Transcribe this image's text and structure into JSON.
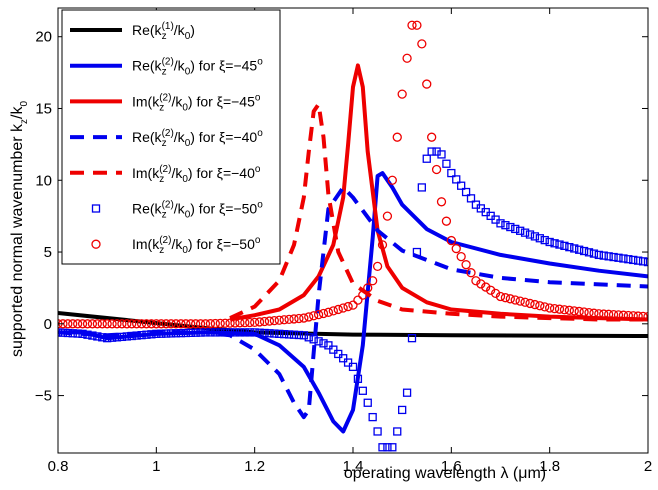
{
  "chart_data": {
    "type": "line",
    "xlabel": "operating wavelength λ (μm)",
    "ylabel": "supported normal wavenumber k_z/k_0",
    "xlim": [
      0.8,
      2.0
    ],
    "ylim": [
      -9,
      22
    ],
    "grid": false,
    "legend_position": "top-left",
    "x_ticks": [
      "0.8",
      "1",
      "1.2",
      "1.4",
      "1.6",
      "1.8",
      "2"
    ],
    "y_ticks": [
      "-5",
      "0",
      "5",
      "10",
      "15",
      "20"
    ],
    "series": [
      {
        "name": "Re(kz(1)/k0)",
        "color": "#000000",
        "style": "solid",
        "legend": {
          "pre": "Re(k",
          "sub": "z",
          "sup": "(1)",
          "post": "/k",
          "sub2": "0",
          "end": ")"
        },
        "x": [
          0.8,
          1.0,
          1.1,
          1.2,
          1.4,
          1.6,
          2.0
        ],
        "y": [
          0.75,
          0.05,
          -0.3,
          -0.6,
          -0.75,
          -0.8,
          -0.85
        ]
      },
      {
        "name": "Re(kz(2)/k0) for ξ=−45°",
        "color": "#0000ee",
        "style": "solid",
        "legend": {
          "pre": "Re(k",
          "sub": "z",
          "sup": "(2)",
          "post": "/k",
          "sub2": "0",
          "end": ") for ξ=−45",
          "deg": "o"
        },
        "x": [
          0.8,
          0.85,
          0.9,
          1.0,
          1.1,
          1.2,
          1.25,
          1.3,
          1.33,
          1.36,
          1.38,
          1.4,
          1.42,
          1.44,
          1.45,
          1.46,
          1.48,
          1.5,
          1.55,
          1.6,
          1.7,
          1.8,
          1.9,
          2.0
        ],
        "y": [
          -0.6,
          -0.6,
          -1.0,
          -0.7,
          -0.6,
          -0.7,
          -1.5,
          -3.0,
          -4.8,
          -6.8,
          -7.5,
          -6.0,
          -1.5,
          6.0,
          10.3,
          10.5,
          9.5,
          8.3,
          6.6,
          5.7,
          4.8,
          4.2,
          3.7,
          3.3
        ]
      },
      {
        "name": "Im(kz(2)/k0) for ξ=−45°",
        "color": "#ee0000",
        "style": "solid",
        "legend": {
          "pre": "Im(k",
          "sub": "z",
          "sup": "(2)",
          "post": "/k",
          "sub2": "0",
          "end": ") for ξ=−45",
          "deg": "o"
        },
        "x": [
          1.15,
          1.2,
          1.25,
          1.3,
          1.33,
          1.36,
          1.38,
          1.39,
          1.4,
          1.41,
          1.42,
          1.43,
          1.45,
          1.47,
          1.5,
          1.55,
          1.6,
          1.7,
          1.8,
          1.9,
          2.0
        ],
        "y": [
          0.3,
          0.6,
          1.0,
          2.0,
          3.3,
          5.5,
          8.8,
          12.5,
          16.5,
          18.0,
          16.5,
          12.0,
          6.5,
          4.0,
          2.5,
          1.5,
          1.0,
          0.7,
          0.5,
          0.4,
          0.3
        ]
      },
      {
        "name": "Re(kz(2)/k0) for ξ=−40°",
        "color": "#0000ee",
        "style": "dashed",
        "legend": {
          "pre": "Re(k",
          "sub": "z",
          "sup": "(2)",
          "post": "/k",
          "sub2": "0",
          "end": ") for ξ=−40",
          "deg": "o"
        },
        "x": [
          0.8,
          0.9,
          1.0,
          1.1,
          1.15,
          1.2,
          1.25,
          1.28,
          1.3,
          1.31,
          1.33,
          1.35,
          1.38,
          1.4,
          1.45,
          1.5,
          1.6,
          1.7,
          1.8,
          2.0
        ],
        "y": [
          -0.6,
          -0.8,
          -0.6,
          -0.6,
          -0.8,
          -1.8,
          -3.5,
          -5.5,
          -6.5,
          -6.0,
          2.0,
          8.0,
          9.5,
          8.8,
          6.5,
          5.1,
          3.8,
          3.2,
          2.9,
          2.6
        ]
      },
      {
        "name": "Im(kz(2)/k0) for ξ=−40°",
        "color": "#ee0000",
        "style": "dashed",
        "legend": {
          "pre": "Im(k",
          "sub": "z",
          "sup": "(2)",
          "post": "/k",
          "sub2": "0",
          "end": ") for ξ=−40",
          "deg": "o"
        },
        "x": [
          1.15,
          1.2,
          1.25,
          1.28,
          1.3,
          1.31,
          1.32,
          1.33,
          1.34,
          1.35,
          1.37,
          1.4,
          1.45,
          1.5,
          1.6,
          1.7,
          1.8,
          1.9,
          2.0
        ],
        "y": [
          0.4,
          1.2,
          3.0,
          5.5,
          8.8,
          12.0,
          14.8,
          15.3,
          13.0,
          9.0,
          5.0,
          2.8,
          1.6,
          1.0,
          0.7,
          0.5,
          0.4,
          0.3,
          0.3
        ]
      },
      {
        "name": "Re(kz(2)/k0) for ξ=−50°",
        "color": "#0000ee",
        "style": "square",
        "legend": {
          "pre": "Re(k",
          "sub": "z",
          "sup": "(2)",
          "post": "/k",
          "sub2": "0",
          "end": ") for ξ=−50",
          "deg": "o"
        },
        "x": [
          0.8,
          0.85,
          0.9,
          1.0,
          1.1,
          1.2,
          1.3,
          1.35,
          1.4,
          1.43,
          1.45,
          1.46,
          1.47,
          1.48,
          1.49,
          1.5,
          1.51,
          1.52,
          1.53,
          1.54,
          1.55,
          1.56,
          1.57,
          1.58,
          1.6,
          1.65,
          1.7,
          1.8,
          1.9,
          2.0
        ],
        "y": [
          -0.6,
          -0.7,
          -1.0,
          -0.7,
          -0.6,
          -0.6,
          -0.8,
          -1.5,
          -3.0,
          -5.5,
          -7.5,
          -8.6,
          -8.6,
          -8.6,
          -7.5,
          -6.0,
          -4.8,
          -1.0,
          5.0,
          9.5,
          11.5,
          12.0,
          12.0,
          11.8,
          10.5,
          8.3,
          7.0,
          5.7,
          4.8,
          4.3
        ]
      },
      {
        "name": "Im(kz(2)/k0) for ξ=−50°",
        "color": "#ee0000",
        "style": "circle",
        "legend": {
          "pre": "Im(k",
          "sub": "z",
          "sup": "(2)",
          "post": "/k",
          "sub2": "0",
          "end": ") for ξ=−50",
          "deg": "o"
        },
        "x": [
          0.8,
          0.9,
          1.0,
          1.1,
          1.2,
          1.3,
          1.35,
          1.4,
          1.42,
          1.44,
          1.45,
          1.46,
          1.47,
          1.48,
          1.49,
          1.5,
          1.51,
          1.52,
          1.53,
          1.54,
          1.55,
          1.56,
          1.58,
          1.6,
          1.65,
          1.7,
          1.8,
          1.9,
          2.0
        ],
        "y": [
          0.0,
          0.0,
          0.0,
          0.0,
          0.1,
          0.4,
          0.8,
          1.3,
          2.0,
          3.0,
          4.0,
          5.5,
          7.5,
          10.0,
          13.0,
          16.0,
          18.5,
          20.8,
          20.8,
          19.5,
          16.7,
          13.0,
          8.5,
          5.8,
          3.0,
          1.9,
          1.1,
          0.7,
          0.5
        ]
      }
    ]
  }
}
